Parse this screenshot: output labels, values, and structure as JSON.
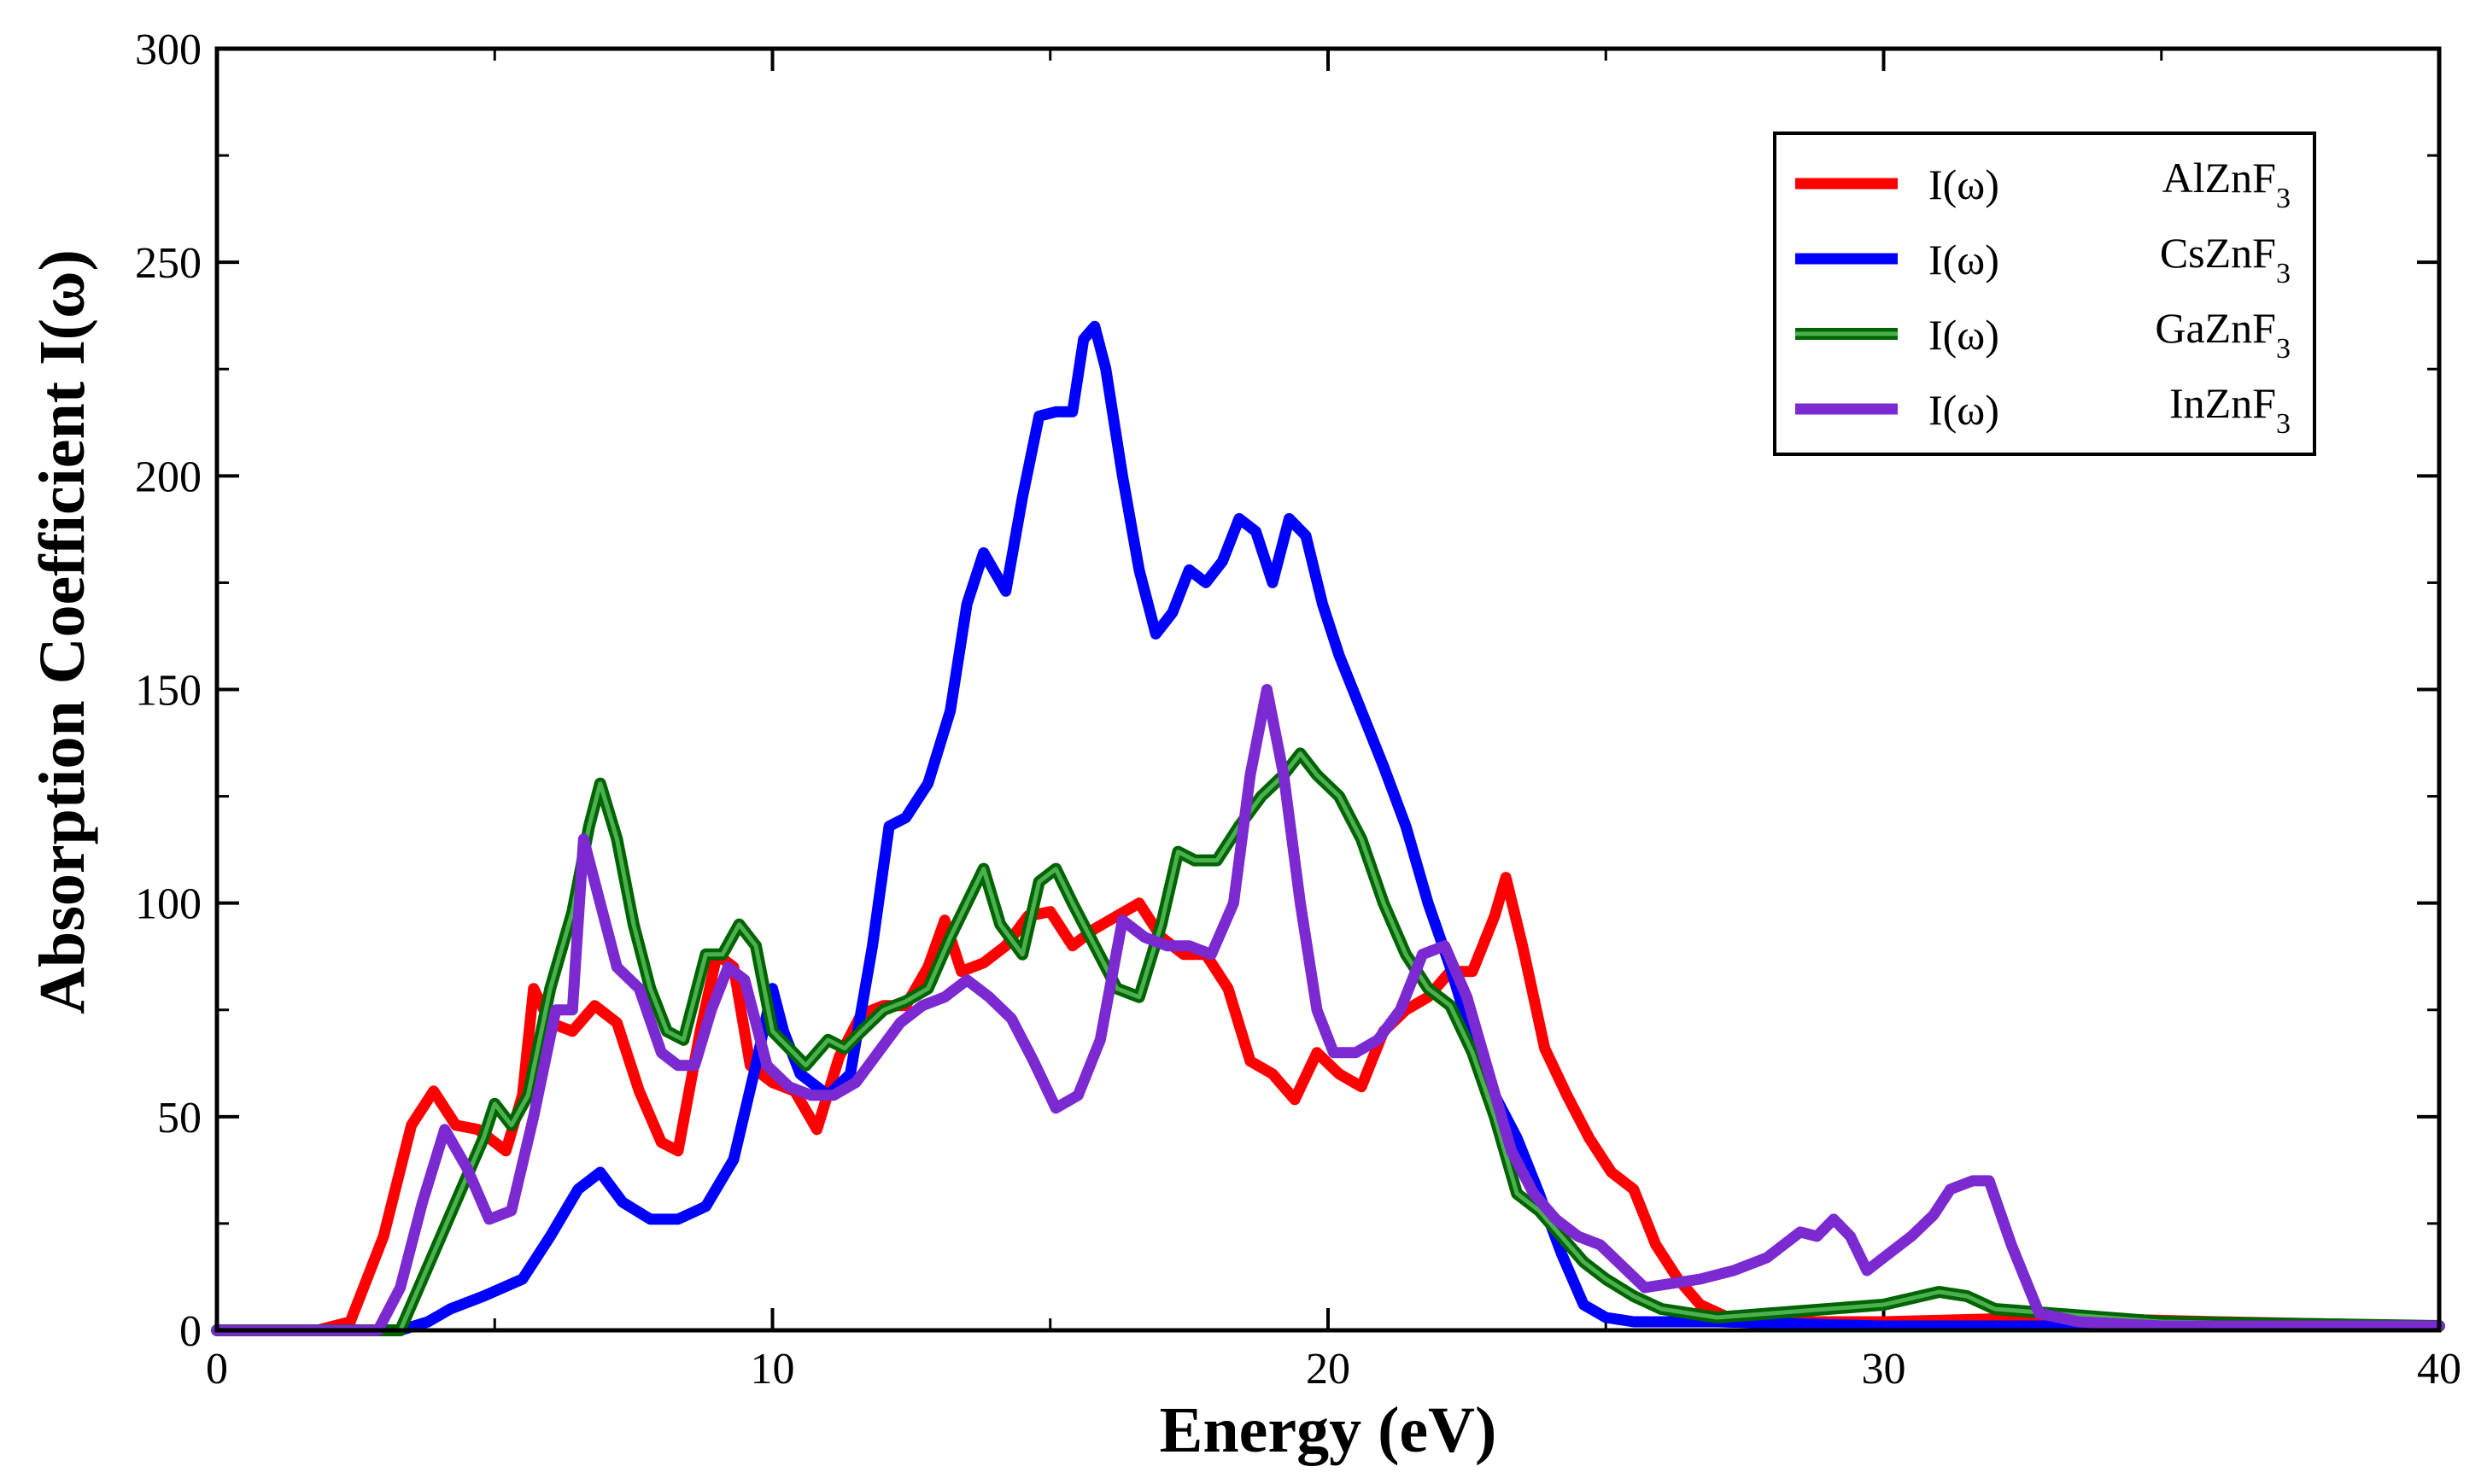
{
  "chart_data": {
    "type": "line",
    "title": "",
    "xlabel": "Energy (eV)",
    "ylabel": "Absorption Coefficient I(ω)",
    "xlim": [
      0,
      40
    ],
    "ylim": [
      0,
      300
    ],
    "x_ticks": [
      0,
      10,
      20,
      30,
      40
    ],
    "y_ticks": [
      0,
      50,
      100,
      150,
      200,
      250,
      300
    ],
    "x_tick_labels": [
      "0",
      "10",
      "20",
      "30",
      "40"
    ],
    "y_tick_labels": [
      "0",
      "50",
      "100",
      "150",
      "200",
      "250",
      "300"
    ],
    "legend_position": "top-right",
    "series": [
      {
        "name": "AlZnF3",
        "legend_prefix": "I(ω)",
        "legend_base": "AlZnF",
        "legend_subscript": "3",
        "color": "#ff0000",
        "x": [
          0,
          1.8,
          2.4,
          3.0,
          3.5,
          3.9,
          4.3,
          4.7,
          5.2,
          5.5,
          5.7,
          6.0,
          6.4,
          6.8,
          7.2,
          7.6,
          8.0,
          8.3,
          8.7,
          9.0,
          9.3,
          9.6,
          10.0,
          10.4,
          10.8,
          11.2,
          11.6,
          12.0,
          12.4,
          12.8,
          13.1,
          13.4,
          13.8,
          14.2,
          14.6,
          15.0,
          15.4,
          15.8,
          16.2,
          16.6,
          17.0,
          17.4,
          17.8,
          18.2,
          18.6,
          19.0,
          19.4,
          19.8,
          20.2,
          20.6,
          21.0,
          21.4,
          21.8,
          22.2,
          22.6,
          23.0,
          23.2,
          23.5,
          23.9,
          24.3,
          24.7,
          25.1,
          25.5,
          25.9,
          26.3,
          26.7,
          27.2,
          28.0,
          30.0,
          33.0,
          36.0,
          40.0
        ],
        "y": [
          0,
          0,
          2,
          22,
          48,
          56,
          48,
          47,
          42,
          55,
          80,
          72,
          70,
          76,
          72,
          56,
          44,
          42,
          70,
          88,
          85,
          62,
          58,
          56,
          47,
          64,
          74,
          76,
          76,
          85,
          96,
          84,
          86,
          90,
          97,
          98,
          90,
          94,
          97,
          100,
          92,
          88,
          88,
          80,
          63,
          60,
          54,
          65,
          60,
          57,
          70,
          75,
          78,
          84,
          84,
          97,
          106,
          90,
          66,
          55,
          45,
          37,
          33,
          20,
          12,
          6,
          3,
          2,
          2,
          3,
          2,
          1
        ]
      },
      {
        "name": "CsZnF3",
        "legend_prefix": "I(ω)",
        "legend_base": "CsZnF",
        "legend_subscript": "3",
        "color": "#0000ff",
        "x": [
          0,
          3.3,
          3.8,
          4.2,
          4.8,
          5.5,
          6.0,
          6.5,
          6.9,
          7.3,
          7.8,
          8.3,
          8.8,
          9.3,
          9.7,
          10.0,
          10.2,
          10.5,
          11.0,
          11.4,
          11.8,
          12.1,
          12.4,
          12.8,
          13.2,
          13.5,
          13.8,
          14.2,
          14.5,
          14.8,
          15.1,
          15.4,
          15.6,
          15.8,
          16.0,
          16.3,
          16.6,
          16.9,
          17.2,
          17.5,
          17.8,
          18.1,
          18.4,
          18.7,
          19.0,
          19.3,
          19.6,
          19.9,
          20.2,
          20.6,
          21.0,
          21.4,
          21.8,
          22.2,
          22.6,
          23.0,
          23.4,
          23.8,
          24.2,
          24.6,
          25.0,
          25.5,
          26.0,
          27.0,
          30.0,
          35.0,
          40.0
        ],
        "y": [
          0,
          0,
          2,
          5,
          8,
          12,
          22,
          33,
          37,
          30,
          26,
          26,
          29,
          40,
          62,
          80,
          70,
          60,
          55,
          60,
          90,
          118,
          120,
          128,
          145,
          170,
          182,
          173,
          195,
          214,
          215,
          215,
          232,
          235,
          225,
          200,
          178,
          163,
          168,
          178,
          175,
          180,
          190,
          187,
          175,
          190,
          186,
          170,
          158,
          145,
          132,
          118,
          100,
          85,
          68,
          55,
          45,
          32,
          18,
          6,
          3,
          2,
          2,
          2,
          1,
          1,
          1
        ]
      },
      {
        "name": "GaZnF3",
        "legend_prefix": "I(ω)",
        "legend_base": "GaZnF",
        "legend_subscript": "3",
        "color": "#008000",
        "x": [
          0,
          3.3,
          3.8,
          4.3,
          4.8,
          5.0,
          5.3,
          5.6,
          6.0,
          6.4,
          6.7,
          6.9,
          7.2,
          7.5,
          7.8,
          8.1,
          8.4,
          8.8,
          9.1,
          9.4,
          9.7,
          10.0,
          10.3,
          10.6,
          11.0,
          11.3,
          11.6,
          12.0,
          12.4,
          12.8,
          13.2,
          13.5,
          13.8,
          14.1,
          14.5,
          14.8,
          15.1,
          15.4,
          15.8,
          16.2,
          16.6,
          17.0,
          17.3,
          17.6,
          18.0,
          18.4,
          18.8,
          19.2,
          19.5,
          19.8,
          20.2,
          20.6,
          21.0,
          21.4,
          21.8,
          22.2,
          22.6,
          23.0,
          23.4,
          23.8,
          24.2,
          24.6,
          25.0,
          25.5,
          26.0,
          27.0,
          28.0,
          29.0,
          30.0,
          31.0,
          31.5,
          32.0,
          33.0,
          34.0,
          35.0,
          40.0
        ],
        "y": [
          0,
          0,
          15,
          30,
          45,
          53,
          48,
          55,
          80,
          98,
          118,
          128,
          115,
          95,
          80,
          70,
          68,
          88,
          88,
          95,
          90,
          70,
          66,
          62,
          68,
          66,
          70,
          75,
          77,
          80,
          92,
          100,
          108,
          95,
          88,
          105,
          108,
          100,
          90,
          80,
          78,
          95,
          112,
          110,
          110,
          118,
          125,
          130,
          135,
          130,
          125,
          115,
          100,
          88,
          80,
          76,
          65,
          50,
          32,
          28,
          22,
          16,
          12,
          8,
          5,
          3,
          4,
          5,
          6,
          9,
          8,
          5,
          4,
          3,
          2,
          1
        ]
      },
      {
        "name": "InZnF3",
        "legend_prefix": "I(ω)",
        "legend_base": "InZnF",
        "legend_subscript": "3",
        "color": "#7b2ad2",
        "x": [
          0,
          2.9,
          3.3,
          3.7,
          4.1,
          4.5,
          4.9,
          5.3,
          5.7,
          6.1,
          6.4,
          6.6,
          6.9,
          7.2,
          7.6,
          8.0,
          8.3,
          8.6,
          8.9,
          9.2,
          9.5,
          9.9,
          10.3,
          10.7,
          11.1,
          11.5,
          11.9,
          12.3,
          12.7,
          13.1,
          13.5,
          13.9,
          14.3,
          14.7,
          15.1,
          15.5,
          15.9,
          16.3,
          16.7,
          17.1,
          17.5,
          17.9,
          18.3,
          18.6,
          18.9,
          19.2,
          19.5,
          19.8,
          20.1,
          20.5,
          20.9,
          21.3,
          21.7,
          22.1,
          22.5,
          22.9,
          23.3,
          23.7,
          24.1,
          24.5,
          24.9,
          25.3,
          25.7,
          26.2,
          26.7,
          27.3,
          27.9,
          28.5,
          28.8,
          29.1,
          29.4,
          29.7,
          30.1,
          30.5,
          30.9,
          31.2,
          31.6,
          31.9,
          32.3,
          32.8,
          33.5,
          35.0,
          40.0
        ],
        "y": [
          0,
          0,
          10,
          30,
          47,
          38,
          26,
          28,
          50,
          75,
          75,
          115,
          100,
          85,
          80,
          65,
          62,
          62,
          75,
          85,
          82,
          62,
          57,
          55,
          55,
          58,
          65,
          72,
          76,
          78,
          82,
          78,
          73,
          63,
          52,
          55,
          68,
          96,
          92,
          90,
          90,
          88,
          100,
          130,
          150,
          130,
          100,
          75,
          65,
          65,
          68,
          75,
          88,
          90,
          78,
          60,
          42,
          32,
          26,
          22,
          20,
          15,
          10,
          11,
          12,
          14,
          17,
          23,
          22,
          26,
          22,
          14,
          18,
          22,
          27,
          33,
          35,
          35,
          20,
          4,
          2,
          1,
          1
        ]
      }
    ]
  }
}
